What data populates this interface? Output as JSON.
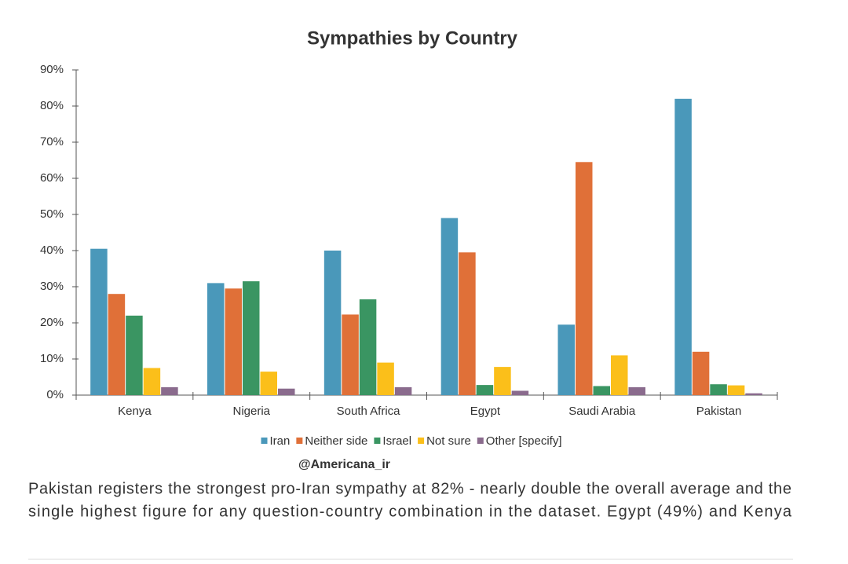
{
  "chart_data": {
    "type": "bar",
    "title": "Sympathies by Country",
    "categories": [
      "Kenya",
      "Nigeria",
      "South Africa",
      "Egypt",
      "Saudi Arabia",
      "Pakistan"
    ],
    "series": [
      {
        "name": "Iran",
        "color": "#4a98ba",
        "values": [
          40.5,
          31,
          40,
          49,
          19.5,
          82
        ]
      },
      {
        "name": "Neither side",
        "color": "#e07038",
        "values": [
          28,
          29.5,
          22.3,
          39.5,
          64.5,
          12
        ]
      },
      {
        "name": "Israel",
        "color": "#3a9562",
        "values": [
          22,
          31.5,
          26.5,
          2.8,
          2.5,
          3
        ]
      },
      {
        "name": "Not sure",
        "color": "#fbbf1a",
        "values": [
          7.5,
          6.5,
          9,
          7.8,
          11,
          2.7
        ]
      },
      {
        "name": "Other [specify]",
        "color": "#8a6b8d",
        "values": [
          2.2,
          1.8,
          2.2,
          1.2,
          2.2,
          0.5
        ]
      }
    ],
    "ylim": [
      0,
      90
    ],
    "yticks": [
      {
        "value": 0,
        "label": "0%"
      },
      {
        "value": 10,
        "label": "10%"
      },
      {
        "value": 20,
        "label": "20%"
      },
      {
        "value": 30,
        "label": "30%"
      },
      {
        "value": 40,
        "label": "40%"
      },
      {
        "value": 50,
        "label": "50%"
      },
      {
        "value": 60,
        "label": "60%"
      },
      {
        "value": 70,
        "label": "70%"
      },
      {
        "value": 80,
        "label": "80%"
      },
      {
        "value": 90,
        "label": "90%"
      }
    ],
    "grid": false,
    "legend": "bottom"
  },
  "watermark": "@Americana_ir",
  "paragraph": [
    "Pakistan registers the strongest pro-Iran sympathy at 82% - nearly double the overall average and the",
    "single highest figure for any question-country combination in the dataset. Egypt (49%) and Kenya"
  ]
}
